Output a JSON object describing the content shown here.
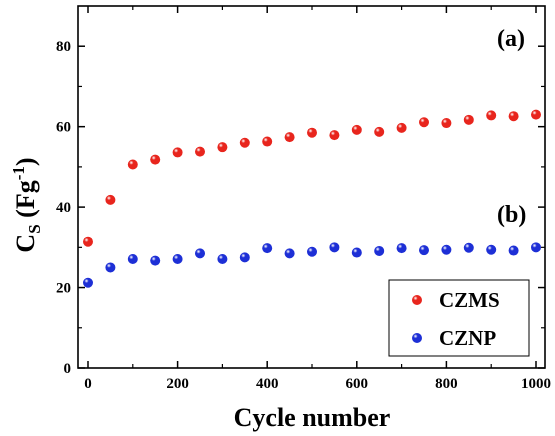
{
  "chart_data": {
    "type": "scatter",
    "xlabel": "Cycle number",
    "ylabel": {
      "main": "C",
      "sub": "S",
      "unit_open": " (Fg",
      "unit_sup": "-1",
      "unit_close": ")"
    },
    "xlim": [
      0,
      1000
    ],
    "ylim": [
      0,
      90
    ],
    "x_ticks": [
      0,
      200,
      400,
      600,
      800,
      1000
    ],
    "y_ticks": [
      0,
      20,
      40,
      60,
      80
    ],
    "grid": false,
    "legend_position": "bottom-right",
    "annotations": [
      {
        "text": "(a)",
        "near": "CZMS series"
      },
      {
        "text": "(b)",
        "near": "CZNP series"
      }
    ],
    "series": [
      {
        "name": "CZMS",
        "color": "#e8251d",
        "x": [
          0,
          50,
          100,
          150,
          200,
          250,
          300,
          350,
          400,
          450,
          500,
          550,
          600,
          650,
          700,
          750,
          800,
          850,
          900,
          950,
          1000
        ],
        "y": [
          31.4,
          41.8,
          50.6,
          51.8,
          53.6,
          53.8,
          54.9,
          56.0,
          56.3,
          57.4,
          58.5,
          57.9,
          59.2,
          58.7,
          59.7,
          61.1,
          60.9,
          61.7,
          62.8,
          62.6,
          63.0
        ]
      },
      {
        "name": "CZNP",
        "color": "#1d2fd6",
        "x": [
          0,
          50,
          100,
          150,
          200,
          250,
          300,
          350,
          400,
          450,
          500,
          550,
          600,
          650,
          700,
          750,
          800,
          850,
          900,
          950,
          1000
        ],
        "y": [
          21.2,
          25.0,
          27.1,
          26.7,
          27.1,
          28.5,
          27.1,
          27.5,
          29.8,
          28.5,
          28.9,
          30.0,
          28.7,
          29.1,
          29.8,
          29.3,
          29.4,
          29.9,
          29.4,
          29.2,
          30.0
        ]
      }
    ]
  }
}
